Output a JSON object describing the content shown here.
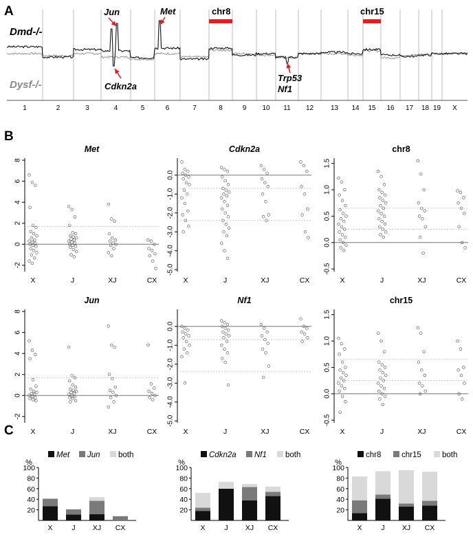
{
  "panels": {
    "a": "A",
    "b": "B",
    "c": "C"
  },
  "colors": {
    "dmd": "#111111",
    "dysf": "#9a9a9a",
    "highlight": "#e02020",
    "arrow": "#e02020",
    "grid": "#bdbdbd",
    "stack_first": "#111111",
    "stack_second": "#7a7a7a",
    "stack_both": "#d9d9d9"
  },
  "genome": {
    "row_labels": {
      "top": "Dmd-/-",
      "bottom": "Dysf-/-"
    },
    "chromosomes": [
      "1",
      "2",
      "3",
      "4",
      "5",
      "6",
      "7",
      "8",
      "9",
      "10",
      "11",
      "12",
      "13",
      "14",
      "15",
      "16",
      "17",
      "18",
      "19",
      "X"
    ],
    "gene_labels": {
      "jun": "Jun",
      "met": "Met",
      "cdkn2a": "Cdkn2a",
      "trp53": "Trp53",
      "nf1": "Nf1"
    },
    "highlight_labels": {
      "chr8": "chr8",
      "chr15": "chr15"
    }
  },
  "chart_data": [
    {
      "type": "scatter",
      "title": "Met",
      "title_style": "italic",
      "categories": [
        "X",
        "J",
        "XJ",
        "CX"
      ],
      "yticks": [
        -2,
        0,
        2,
        4,
        6,
        8
      ],
      "ylim": [
        -2.6,
        8.2
      ],
      "ref_lines": [
        1.7
      ],
      "points": {
        "X": [
          6.6,
          5.9,
          5.6,
          3.5,
          1.8,
          1.6,
          1.2,
          1.0,
          0.8,
          0.6,
          0.4,
          0.3,
          0.2,
          0.1,
          0.0,
          -0.1,
          -0.2,
          -0.4,
          -0.6,
          -0.8,
          -1.0,
          -1.3,
          -1.6,
          -1.8
        ],
        "J": [
          3.6,
          3.3,
          2.6,
          1.8,
          1.1,
          1.0,
          0.8,
          0.7,
          0.6,
          0.5,
          0.4,
          0.3,
          0.2,
          0.1,
          0.0,
          -0.1,
          -0.2,
          -0.3,
          -0.5,
          -0.7,
          -1.0,
          -1.2
        ],
        "XJ": [
          3.8,
          2.4,
          2.2,
          1.0,
          0.6,
          0.4,
          0.3,
          0.1,
          0.0,
          -0.1,
          -0.4,
          -0.8,
          -1.1
        ],
        "CX": [
          0.4,
          0.3,
          0.0,
          -0.4,
          -0.6,
          -0.9,
          -1.1,
          -1.6,
          -2.3
        ]
      }
    },
    {
      "type": "scatter",
      "title": "Cdkn2a",
      "title_style": "italic",
      "categories": [
        "X",
        "J",
        "XJ",
        "CX"
      ],
      "yticks": [
        0,
        -1,
        -2,
        -3,
        -4,
        -5
      ],
      "ylim": [
        -5.1,
        0.9
      ],
      "ref_lines": [
        -0.7,
        -2.4
      ],
      "points": {
        "X": [
          0.7,
          0.3,
          0.2,
          0.1,
          0.0,
          -0.1,
          -0.2,
          -0.4,
          -0.5,
          -0.8,
          -1.0,
          -1.2,
          -1.5,
          -1.9,
          -2.1,
          -2.4,
          -2.7,
          -3.0
        ],
        "J": [
          0.4,
          0.3,
          0.2,
          -0.1,
          -0.3,
          -0.5,
          -0.7,
          -0.8,
          -0.9,
          -1.0,
          -1.1,
          -1.2,
          -1.4,
          -1.6,
          -1.8,
          -2.0,
          -2.2,
          -2.4,
          -2.6,
          -2.8,
          -3.0,
          -3.2,
          -3.6,
          -4.0,
          -4.4
        ],
        "XJ": [
          0.5,
          0.3,
          0.1,
          -0.2,
          -0.4,
          -0.6,
          -1.0,
          -1.4,
          -2.1,
          -2.2,
          -2.4
        ],
        "CX": [
          0.7,
          0.5,
          0.2,
          -0.6,
          -1.0,
          -1.8,
          -2.1,
          -3.0,
          -3.3
        ]
      }
    },
    {
      "type": "scatter",
      "title": "chr8",
      "title_style": "bold",
      "categories": [
        "X",
        "J",
        "XJ",
        "CX"
      ],
      "yticks": [
        -0.5,
        0.0,
        0.5,
        1.0,
        1.5
      ],
      "ylim": [
        -0.55,
        1.6
      ],
      "ref_lines": [
        0.65,
        0.25
      ],
      "points": {
        "X": [
          1.22,
          1.15,
          1.0,
          0.9,
          0.8,
          0.7,
          0.62,
          0.55,
          0.5,
          0.45,
          0.4,
          0.35,
          0.3,
          0.25,
          0.2,
          0.15,
          0.1,
          0.05,
          0.0,
          -0.05,
          -0.1,
          -0.15
        ],
        "J": [
          1.35,
          1.25,
          1.1,
          1.0,
          0.95,
          0.9,
          0.85,
          0.8,
          0.75,
          0.7,
          0.65,
          0.6,
          0.55,
          0.5,
          0.45,
          0.4,
          0.35,
          0.3,
          0.25,
          0.2,
          0.15,
          0.1
        ],
        "XJ": [
          1.55,
          1.3,
          1.0,
          0.75,
          0.65,
          0.6,
          0.5,
          0.45,
          0.3,
          0.1,
          -0.2
        ],
        "CX": [
          0.98,
          0.95,
          0.85,
          0.75,
          0.65,
          0.55,
          0.3,
          0.0,
          -0.1
        ]
      }
    },
    {
      "type": "scatter",
      "title": "Jun",
      "title_style": "italic",
      "categories": [
        "X",
        "J",
        "XJ",
        "CX"
      ],
      "yticks": [
        -2,
        0,
        2,
        4,
        6,
        8
      ],
      "ylim": [
        -2.6,
        8.2
      ],
      "ref_lines": [
        1.7
      ],
      "points": {
        "X": [
          5.2,
          4.3,
          3.9,
          3.5,
          1.5,
          0.9,
          0.6,
          0.4,
          0.3,
          0.2,
          0.1,
          0.0,
          -0.1,
          -0.2,
          -0.3,
          -0.4,
          -0.5
        ],
        "J": [
          4.6,
          1.9,
          1.7,
          1.4,
          1.0,
          0.8,
          0.6,
          0.5,
          0.4,
          0.3,
          0.2,
          0.1,
          0.0,
          -0.1,
          -0.2,
          -0.3,
          -0.5,
          -0.6
        ],
        "XJ": [
          6.6,
          4.8,
          4.6,
          2.0,
          1.6,
          0.8,
          0.5,
          0.3,
          0.0,
          -0.2,
          -0.6,
          -1.1
        ],
        "CX": [
          4.8,
          1.1,
          0.7,
          0.4,
          0.2,
          0.0,
          -0.2,
          -0.4
        ]
      }
    },
    {
      "type": "scatter",
      "title": "Nf1",
      "title_style": "italic",
      "categories": [
        "X",
        "J",
        "XJ",
        "CX"
      ],
      "yticks": [
        0,
        -1,
        -2,
        -3,
        -4,
        -5
      ],
      "ylim": [
        -5.1,
        0.9
      ],
      "ref_lines": [
        -0.7,
        -2.4
      ],
      "points": {
        "X": [
          0.0,
          -0.1,
          -0.2,
          -0.3,
          -0.4,
          -0.5,
          -0.6,
          -0.8,
          -1.0,
          -1.2,
          -1.4,
          -1.6,
          -3.0
        ],
        "J": [
          0.3,
          0.2,
          0.1,
          0.0,
          -0.1,
          -0.2,
          -0.3,
          -0.4,
          -0.5,
          -0.6,
          -0.8,
          -1.0,
          -1.2,
          -1.4,
          -1.7,
          -1.9,
          -3.1
        ],
        "XJ": [
          0.1,
          -0.1,
          -0.3,
          -0.5,
          -0.7,
          -0.9,
          -1.2,
          -1.4,
          -2.1,
          -2.7
        ],
        "CX": [
          0.4,
          0.0,
          -0.1,
          -0.3,
          -0.4,
          -0.6,
          -0.8
        ]
      }
    },
    {
      "type": "scatter",
      "title": "chr15",
      "title_style": "bold",
      "categories": [
        "X",
        "J",
        "XJ",
        "CX"
      ],
      "yticks": [
        -0.5,
        0.0,
        0.5,
        1.0,
        1.5
      ],
      "ylim": [
        -0.55,
        1.6
      ],
      "ref_lines": [
        0.65,
        0.25
      ],
      "points": {
        "X": [
          1.05,
          0.95,
          0.85,
          0.75,
          0.6,
          0.5,
          0.45,
          0.4,
          0.35,
          0.3,
          0.25,
          0.2,
          0.15,
          0.1,
          0.05,
          -0.05,
          -0.15,
          -0.35
        ],
        "J": [
          1.15,
          1.0,
          0.8,
          0.6,
          0.55,
          0.5,
          0.45,
          0.4,
          0.35,
          0.3,
          0.25,
          0.2,
          0.15,
          0.1,
          0.05,
          0.0,
          -0.05,
          -0.1,
          -0.2
        ],
        "XJ": [
          1.25,
          1.15,
          0.8,
          0.6,
          0.45,
          0.35,
          0.2,
          0.15,
          0.05,
          0.0
        ],
        "CX": [
          1.0,
          0.85,
          0.5,
          0.45,
          0.35,
          0.2,
          0.0,
          -0.1
        ]
      }
    },
    {
      "type": "bar",
      "stacked": true,
      "ylabel": "%",
      "categories": [
        "X",
        "J",
        "XJ",
        "CX"
      ],
      "yticks": [
        20,
        40,
        60,
        80,
        100
      ],
      "ylim": [
        0,
        100
      ],
      "series": [
        {
          "name": "Met",
          "name_style": "italic",
          "values": [
            27,
            11,
            12,
            0
          ]
        },
        {
          "name": "Jun",
          "name_style": "italic",
          "values": [
            14,
            10,
            25,
            8
          ]
        },
        {
          "name": "both",
          "name_style": "normal",
          "values": [
            0,
            0,
            7,
            0
          ]
        }
      ]
    },
    {
      "type": "bar",
      "stacked": true,
      "ylabel": "%",
      "categories": [
        "X",
        "J",
        "XJ",
        "CX"
      ],
      "yticks": [
        20,
        40,
        60,
        80,
        100
      ],
      "ylim": [
        0,
        100
      ],
      "series": [
        {
          "name": "Cdkn2a",
          "name_style": "italic",
          "values": [
            18,
            60,
            38,
            46
          ]
        },
        {
          "name": "Nf1",
          "name_style": "italic",
          "values": [
            6,
            0,
            25,
            8
          ]
        },
        {
          "name": "both",
          "name_style": "normal",
          "values": [
            28,
            13,
            6,
            10
          ]
        }
      ]
    },
    {
      "type": "bar",
      "stacked": true,
      "ylabel": "%",
      "categories": [
        "X",
        "J",
        "XJ",
        "CX"
      ],
      "yticks": [
        20,
        40,
        60,
        80,
        100
      ],
      "ylim": [
        0,
        100
      ],
      "series": [
        {
          "name": "chr8",
          "name_style": "normal",
          "values": [
            14,
            41,
            26,
            28
          ]
        },
        {
          "name": "chr15",
          "name_style": "normal",
          "values": [
            24,
            8,
            6,
            9
          ]
        },
        {
          "name": "both",
          "name_style": "normal",
          "values": [
            45,
            44,
            63,
            55
          ]
        }
      ]
    }
  ]
}
